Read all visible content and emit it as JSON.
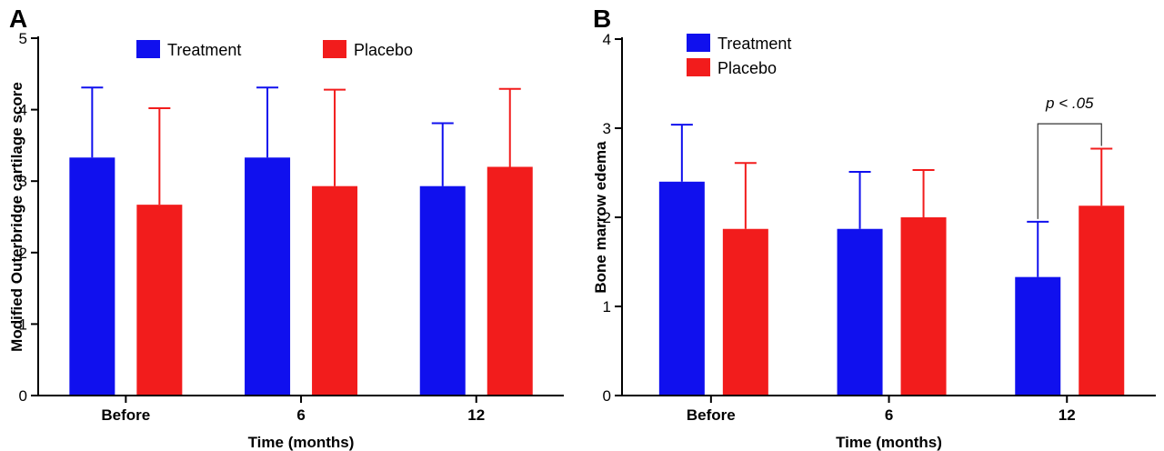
{
  "colors": {
    "treatment": "#1010ee",
    "placebo": "#f21c1c"
  },
  "chart_data": [
    {
      "type": "bar",
      "panel_label": "A",
      "categories": [
        "Before",
        "6",
        "12"
      ],
      "xlabel": "Time (months)",
      "ylabel": "Modified Outerbridge cartilage score",
      "ylim": [
        0,
        5
      ],
      "yticks": [
        "0",
        "1",
        "2",
        "3",
        "4",
        "5"
      ],
      "legend_placement": "top-center",
      "series": [
        {
          "name": "Treatment",
          "color": "#1010ee",
          "values": [
            3.33,
            3.33,
            2.93
          ],
          "errors": [
            0.98,
            0.98,
            0.88
          ]
        },
        {
          "name": "Placebo",
          "color": "#f21c1c",
          "values": [
            2.67,
            2.93,
            3.2
          ],
          "errors": [
            1.35,
            1.35,
            1.09
          ]
        }
      ],
      "annotation": null
    },
    {
      "type": "bar",
      "panel_label": "B",
      "categories": [
        "Before",
        "6",
        "12"
      ],
      "xlabel": "Time (months)",
      "ylabel": "Bone marrow edema",
      "ylim": [
        0,
        4
      ],
      "yticks": [
        "0",
        "1",
        "2",
        "3",
        "4"
      ],
      "legend_placement": "top-left",
      "series": [
        {
          "name": "Treatment",
          "color": "#1010ee",
          "values": [
            2.4,
            1.87,
            1.33
          ],
          "errors": [
            0.64,
            0.64,
            0.62
          ]
        },
        {
          "name": "Placebo",
          "color": "#f21c1c",
          "values": [
            1.87,
            2.0,
            2.13
          ],
          "errors": [
            0.74,
            0.53,
            0.64
          ]
        }
      ],
      "annotation": {
        "text": "p < .05",
        "category_index": 2,
        "bracket_y": 3.05
      }
    }
  ]
}
